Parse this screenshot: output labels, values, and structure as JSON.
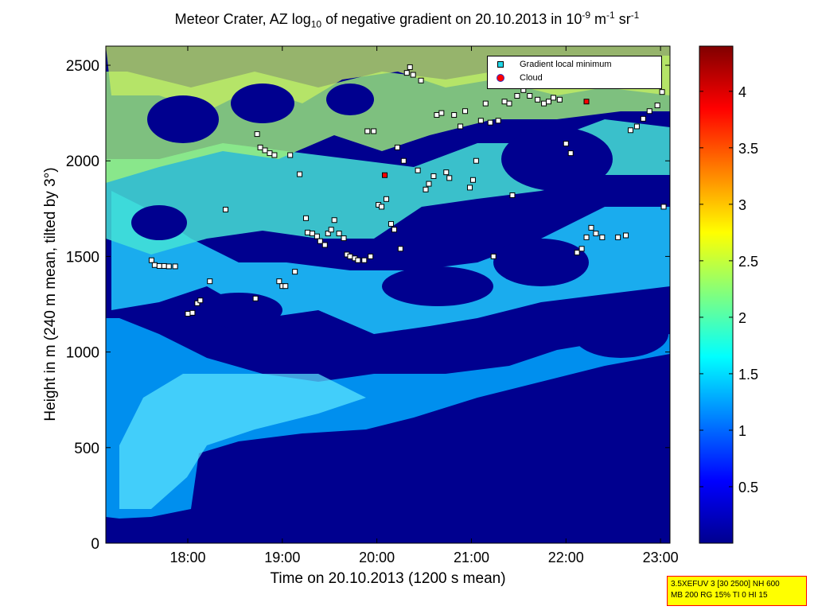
{
  "chart_data": {
    "type": "heatmap",
    "title_parts": {
      "pre": "Meteor Crater, AZ log",
      "sub": "10",
      "mid": " of negative gradient on 20.10.2013 in 10",
      "sup1": "-9",
      "mid2": " m",
      "sup2": "-1",
      "mid3": " sr",
      "sup3": "-1"
    },
    "xlabel": "Time on 20.10.2013 (1200 s mean)",
    "ylabel": "Height in m (240 m mean, tilted by 3°)",
    "xlim": [
      "17:08",
      "23:06"
    ],
    "ylim": [
      0,
      2600
    ],
    "xticks": [
      "18:00",
      "19:00",
      "20:00",
      "21:00",
      "22:00",
      "23:00"
    ],
    "yticks": [
      0,
      500,
      1000,
      1500,
      2000,
      2500
    ],
    "colorbar": {
      "colormap": "jet",
      "range": [
        0,
        4.4
      ],
      "ticks": [
        "0.5",
        "1",
        "1.5",
        "2",
        "2.5",
        "3",
        "3.5",
        "4"
      ]
    },
    "legend": {
      "position": "top-right",
      "entries": [
        "Gradient local minimum",
        "Cloud"
      ]
    },
    "series": [
      {
        "name": "Gradient local minimum",
        "points": [
          [
            "17:37",
            1480
          ],
          [
            "17:39",
            1455
          ],
          [
            "17:42",
            1450
          ],
          [
            "17:45",
            1450
          ],
          [
            "17:48",
            1448
          ],
          [
            "17:52",
            1448
          ],
          [
            "18:00",
            1200
          ],
          [
            "18:03",
            1205
          ],
          [
            "18:06",
            1255
          ],
          [
            "18:08",
            1270
          ],
          [
            "18:14",
            1370
          ],
          [
            "18:24",
            1745
          ],
          [
            "18:43",
            1280
          ],
          [
            "18:44",
            2140
          ],
          [
            "18:46",
            2070
          ],
          [
            "18:49",
            2055
          ],
          [
            "18:52",
            2040
          ],
          [
            "18:55",
            2030
          ],
          [
            "18:58",
            1370
          ],
          [
            "19:00",
            1345
          ],
          [
            "19:02",
            1345
          ],
          [
            "19:05",
            2030
          ],
          [
            "19:08",
            1420
          ],
          [
            "19:11",
            1930
          ],
          [
            "19:15",
            1700
          ],
          [
            "19:16",
            1625
          ],
          [
            "19:19",
            1620
          ],
          [
            "19:22",
            1605
          ],
          [
            "19:24",
            1580
          ],
          [
            "19:27",
            1560
          ],
          [
            "19:29",
            1620
          ],
          [
            "19:31",
            1640
          ],
          [
            "19:33",
            1690
          ],
          [
            "19:36",
            1620
          ],
          [
            "19:39",
            1595
          ],
          [
            "19:41",
            1510
          ],
          [
            "19:43",
            1500
          ],
          [
            "19:46",
            1490
          ],
          [
            "19:48",
            1480
          ],
          [
            "19:52",
            1480
          ],
          [
            "19:54",
            2155
          ],
          [
            "19:56",
            1500
          ],
          [
            "19:58",
            2155
          ],
          [
            "20:01",
            1770
          ],
          [
            "20:03",
            1760
          ],
          [
            "20:06",
            1800
          ],
          [
            "20:09",
            1670
          ],
          [
            "20:11",
            1640
          ],
          [
            "20:13",
            2070
          ],
          [
            "20:15",
            1540
          ],
          [
            "20:17",
            2000
          ],
          [
            "20:19",
            2460
          ],
          [
            "20:21",
            2490
          ],
          [
            "20:23",
            2450
          ],
          [
            "20:26",
            1950
          ],
          [
            "20:28",
            2420
          ],
          [
            "20:31",
            1850
          ],
          [
            "20:33",
            1880
          ],
          [
            "20:36",
            1920
          ],
          [
            "20:38",
            2240
          ],
          [
            "20:41",
            2250
          ],
          [
            "20:44",
            1940
          ],
          [
            "20:46",
            1910
          ],
          [
            "20:49",
            2240
          ],
          [
            "20:53",
            2180
          ],
          [
            "20:56",
            2260
          ],
          [
            "20:59",
            1860
          ],
          [
            "21:01",
            1900
          ],
          [
            "21:03",
            2000
          ],
          [
            "21:06",
            2210
          ],
          [
            "21:09",
            2300
          ],
          [
            "21:12",
            2200
          ],
          [
            "21:14",
            1500
          ],
          [
            "21:17",
            2210
          ],
          [
            "21:21",
            2310
          ],
          [
            "21:24",
            2300
          ],
          [
            "21:26",
            1820
          ],
          [
            "21:29",
            2340
          ],
          [
            "21:33",
            2370
          ],
          [
            "21:37",
            2340
          ],
          [
            "21:42",
            2320
          ],
          [
            "21:46",
            2300
          ],
          [
            "21:49",
            2310
          ],
          [
            "21:52",
            2330
          ],
          [
            "21:56",
            2320
          ],
          [
            "22:00",
            2090
          ],
          [
            "22:03",
            2040
          ],
          [
            "22:07",
            1520
          ],
          [
            "22:10",
            1540
          ],
          [
            "22:13",
            1600
          ],
          [
            "22:16",
            1650
          ],
          [
            "22:19",
            1620
          ],
          [
            "22:23",
            1600
          ],
          [
            "22:33",
            1600
          ],
          [
            "22:38",
            1610
          ],
          [
            "22:41",
            2160
          ],
          [
            "22:45",
            2180
          ],
          [
            "22:49",
            2220
          ],
          [
            "22:53",
            2260
          ],
          [
            "22:58",
            2290
          ],
          [
            "23:01",
            2360
          ],
          [
            "23:02",
            1760
          ]
        ]
      },
      {
        "name": "Cloud",
        "points": [
          [
            "20:05",
            1925
          ],
          [
            "22:13",
            2310
          ]
        ]
      }
    ]
  },
  "infobox": {
    "line1": "3.5XEFUV 3 [30 2500] NH 600",
    "line2": "MB 200 RG 15% TI 0 HI 15"
  }
}
